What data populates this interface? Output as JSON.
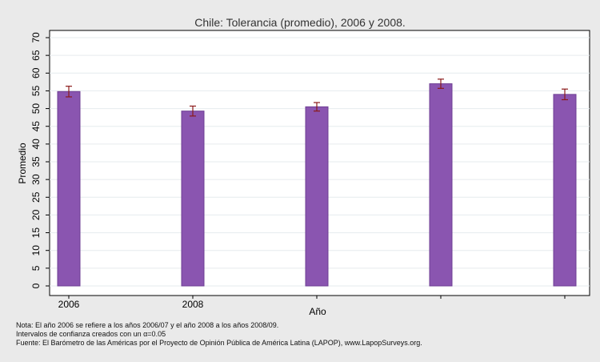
{
  "chart_data": {
    "type": "bar",
    "title": "Chile: Tolerancia (promedio), 2006 y 2008.",
    "xlabel": "Año",
    "ylabel": "Promedio",
    "ylim": [
      0,
      70
    ],
    "yticks": [
      0,
      5,
      10,
      15,
      20,
      25,
      30,
      35,
      40,
      45,
      50,
      55,
      60,
      65,
      70
    ],
    "categories": [
      "2006",
      "2008",
      "",
      "",
      ""
    ],
    "values": [
      54.8,
      49.3,
      50.5,
      57.0,
      54.0
    ],
    "error_low": [
      53.3,
      47.9,
      49.3,
      55.7,
      52.5
    ],
    "error_high": [
      56.3,
      50.7,
      51.7,
      58.3,
      55.5
    ],
    "bar_color": "#8a55b0",
    "bar_edge_color": "#6f3f94",
    "error_color": "#8b1a1a",
    "grid": true,
    "legend": "none"
  },
  "notes": [
    "Nota: El año 2006 se refiere a los años 2006/07 y el año 2008 a los años 2008/09.",
    "Intervalos de confianza creados con un α=0.05",
    "Fuente: El Barómetro de las Américas por el Proyecto de Opinión Pública de América Latina (LAPOP), www.LapopSurveys.org."
  ]
}
